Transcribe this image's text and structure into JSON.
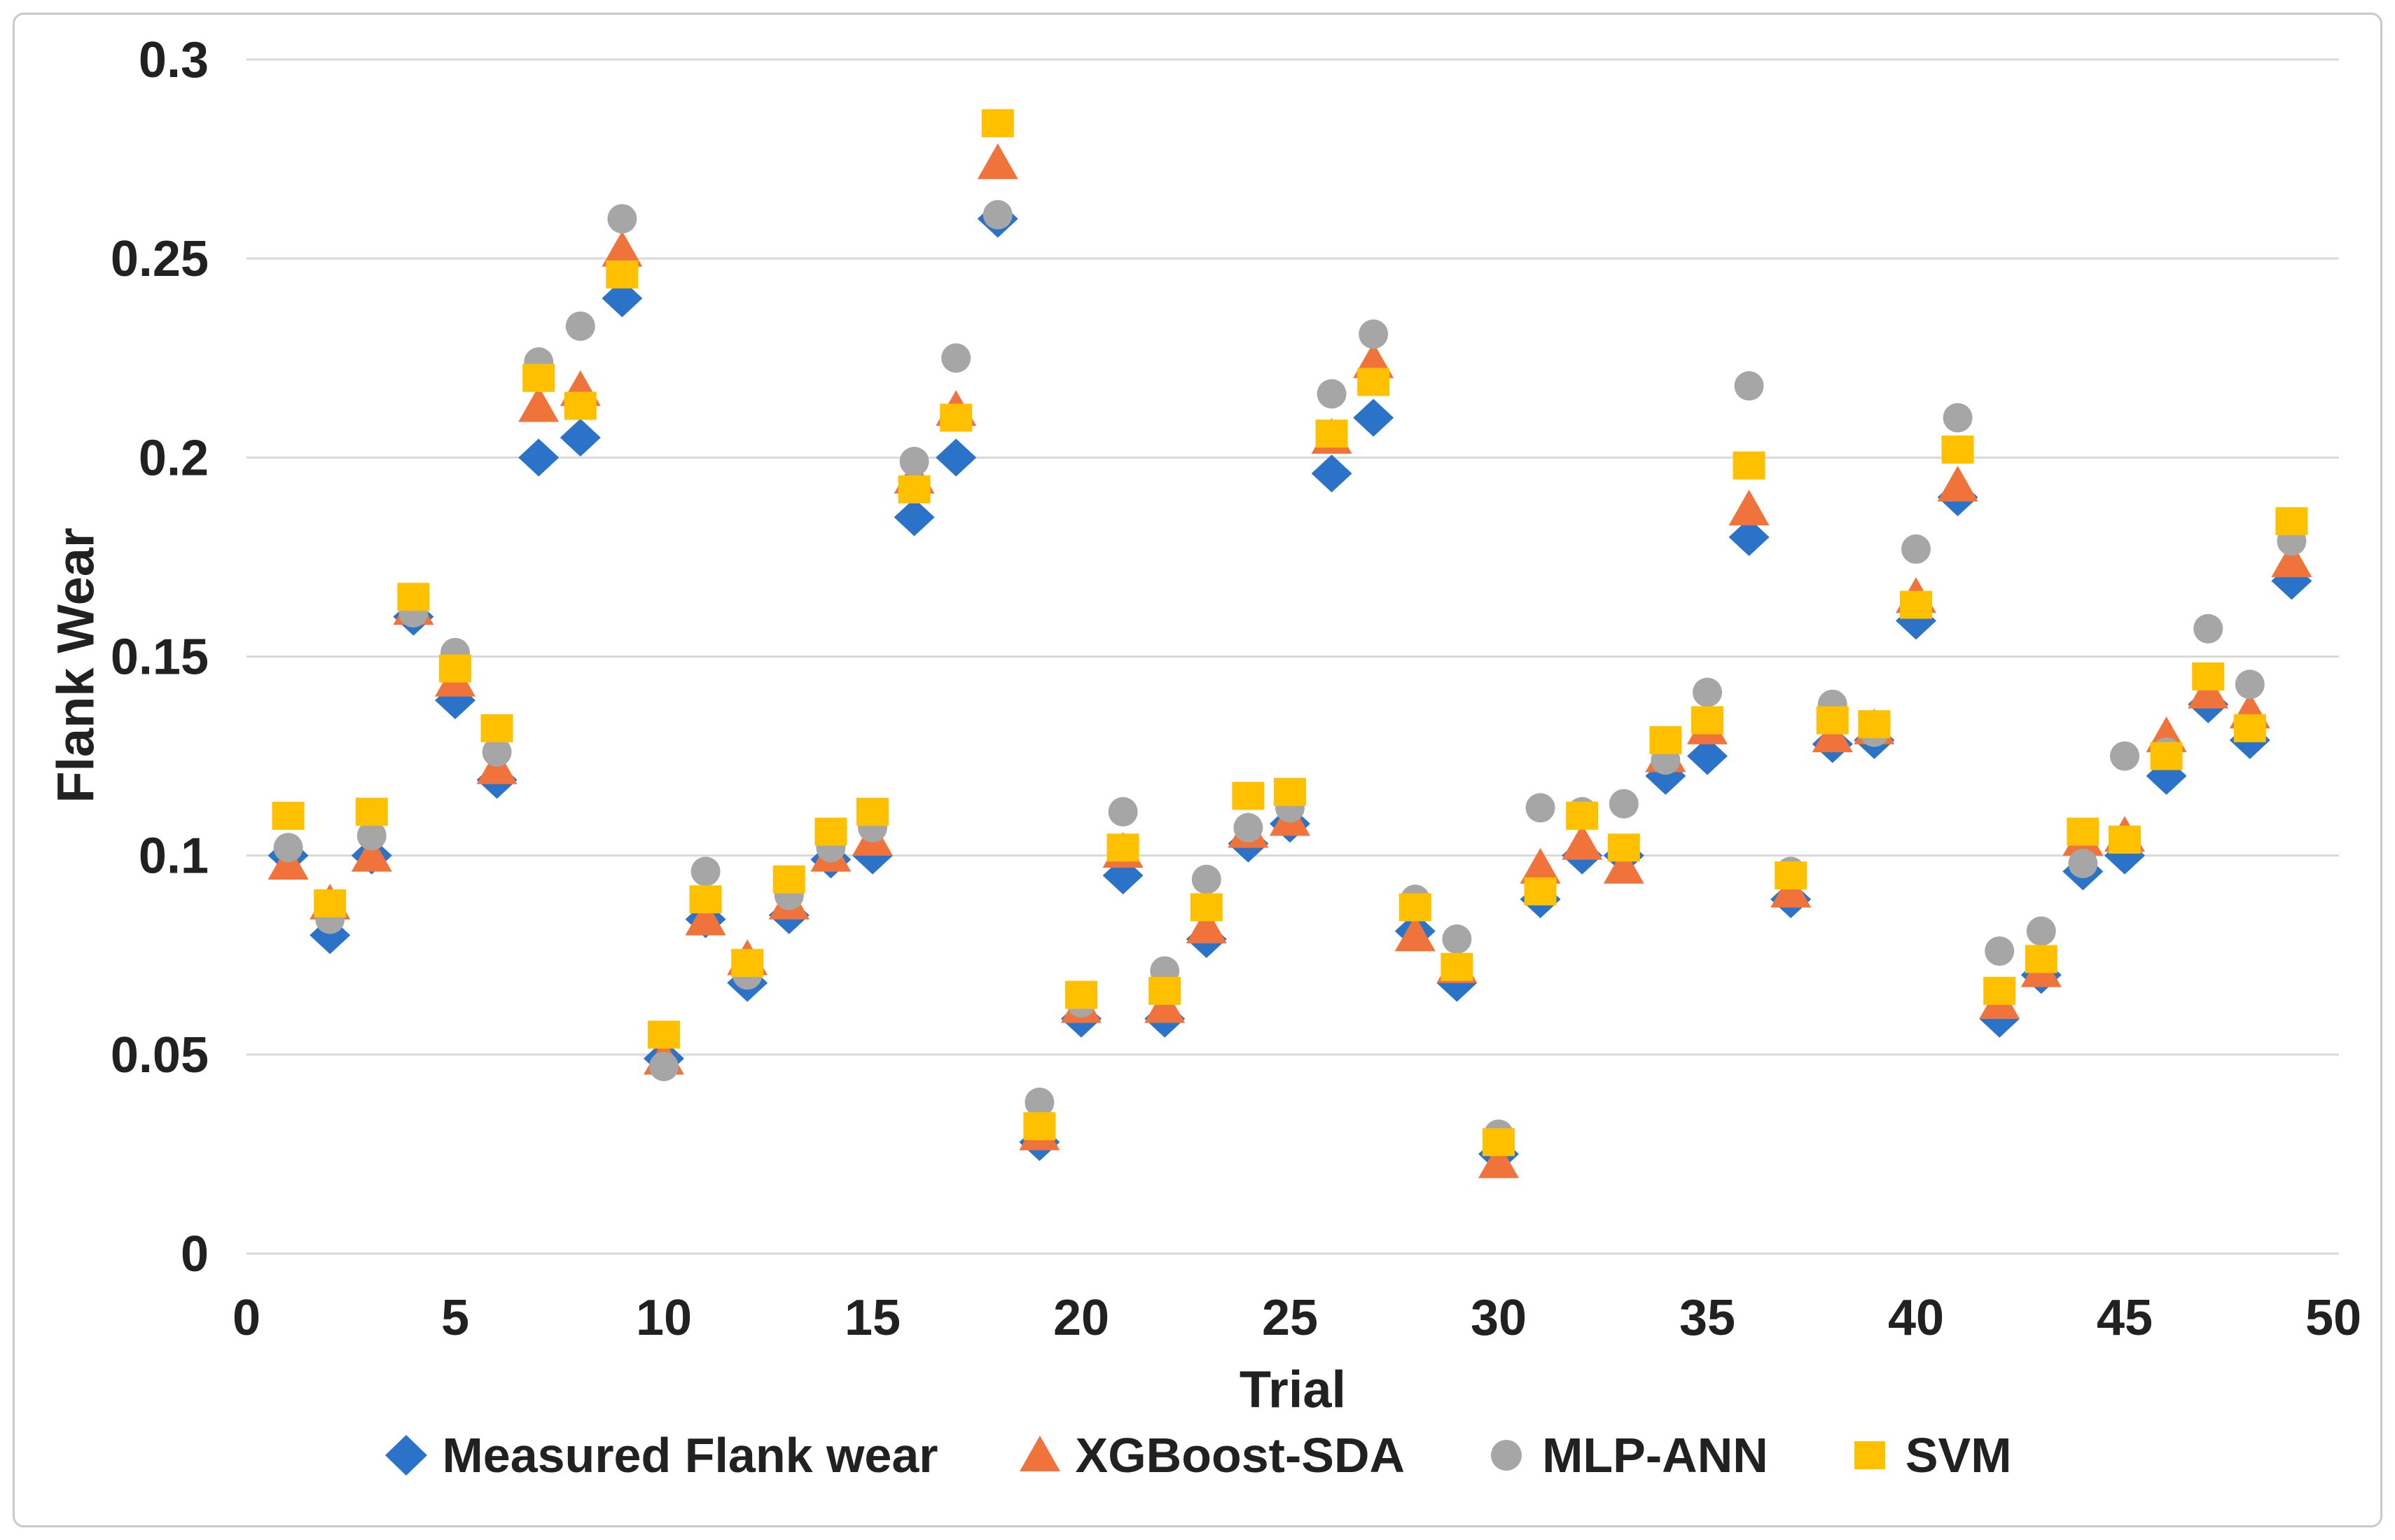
{
  "chart_data": {
    "type": "scatter",
    "title": "",
    "xlabel": "Trial",
    "ylabel": "Flank Wear",
    "xlim": [
      0,
      50
    ],
    "ylim": [
      0,
      0.3
    ],
    "x_ticks": [
      0,
      5,
      10,
      15,
      20,
      25,
      30,
      35,
      40,
      45,
      50
    ],
    "y_ticks": [
      0,
      0.05,
      0.1,
      0.15,
      0.2,
      0.25,
      0.3
    ],
    "y_tick_labels": [
      "0",
      "0.05",
      "0.1",
      "0.15",
      "0.2",
      "0.25",
      "0.3"
    ],
    "grid": "horizontal-only",
    "gridline_color": "#d9d9d9",
    "text_color": "#212121",
    "legend_position": "bottom",
    "x": [
      1,
      2,
      3,
      4,
      5,
      6,
      7,
      8,
      9,
      10,
      11,
      12,
      13,
      14,
      15,
      16,
      17,
      18,
      19,
      20,
      21,
      22,
      23,
      24,
      25,
      26,
      27,
      28,
      29,
      30,
      31,
      32,
      33,
      34,
      35,
      36,
      37,
      38,
      39,
      40,
      41,
      42,
      43,
      44,
      45,
      46,
      47,
      48,
      49
    ],
    "series": [
      {
        "name": "Measured Flank wear",
        "marker": "diamond",
        "color": "#2b73c8",
        "values": [
          0.1,
          0.08,
          0.1,
          0.16,
          0.139,
          0.119,
          0.2,
          0.205,
          0.24,
          0.049,
          0.084,
          0.068,
          0.085,
          0.099,
          0.1,
          0.185,
          0.2,
          0.26,
          0.028,
          0.059,
          0.095,
          0.059,
          0.079,
          0.103,
          0.108,
          0.196,
          0.21,
          0.081,
          0.068,
          0.025,
          0.089,
          0.1,
          0.1,
          0.12,
          0.125,
          0.18,
          0.089,
          0.128,
          0.129,
          0.159,
          0.19,
          0.059,
          0.07,
          0.096,
          0.1,
          0.12,
          0.138,
          0.129,
          0.169
        ]
      },
      {
        "name": "XGBoost-SDA",
        "marker": "triangle",
        "color": "#f0733b",
        "values": [
          0.098,
          0.088,
          0.1,
          0.162,
          0.144,
          0.122,
          0.213,
          0.217,
          0.252,
          0.049,
          0.084,
          0.074,
          0.088,
          0.1,
          0.104,
          0.195,
          0.212,
          0.274,
          0.03,
          0.062,
          0.101,
          0.062,
          0.082,
          0.106,
          0.109,
          0.205,
          0.224,
          0.08,
          0.072,
          0.023,
          0.097,
          0.103,
          0.097,
          0.125,
          0.132,
          0.187,
          0.091,
          0.13,
          0.132,
          0.165,
          0.193,
          0.063,
          0.071,
          0.104,
          0.105,
          0.13,
          0.141,
          0.136,
          0.174
        ]
      },
      {
        "name": "MLP-ANN",
        "marker": "circle",
        "color": "#a6a6a6",
        "values": [
          0.102,
          0.084,
          0.105,
          0.161,
          0.151,
          0.126,
          0.224,
          0.233,
          0.26,
          0.047,
          0.096,
          0.07,
          0.09,
          0.102,
          0.107,
          0.199,
          0.225,
          0.261,
          0.038,
          0.063,
          0.111,
          0.071,
          0.094,
          0.107,
          0.112,
          0.216,
          0.231,
          0.089,
          0.079,
          0.03,
          0.112,
          0.111,
          0.113,
          0.124,
          0.141,
          0.218,
          0.096,
          0.138,
          0.131,
          0.177,
          0.21,
          0.076,
          0.081,
          0.098,
          0.125,
          0.126,
          0.157,
          0.143,
          0.179
        ]
      },
      {
        "name": "SVM",
        "marker": "square",
        "color": "#ffc000",
        "values": [
          0.11,
          0.088,
          0.111,
          0.165,
          0.147,
          0.132,
          0.22,
          0.213,
          0.246,
          0.055,
          0.089,
          0.073,
          0.094,
          0.106,
          0.111,
          0.192,
          0.21,
          0.284,
          0.032,
          0.065,
          0.102,
          0.066,
          0.087,
          0.115,
          0.116,
          0.206,
          0.219,
          0.087,
          0.072,
          0.028,
          0.091,
          0.11,
          0.102,
          0.129,
          0.134,
          0.198,
          0.095,
          0.134,
          0.133,
          0.163,
          0.202,
          0.066,
          0.074,
          0.106,
          0.104,
          0.125,
          0.145,
          0.132,
          0.184
        ]
      }
    ]
  }
}
